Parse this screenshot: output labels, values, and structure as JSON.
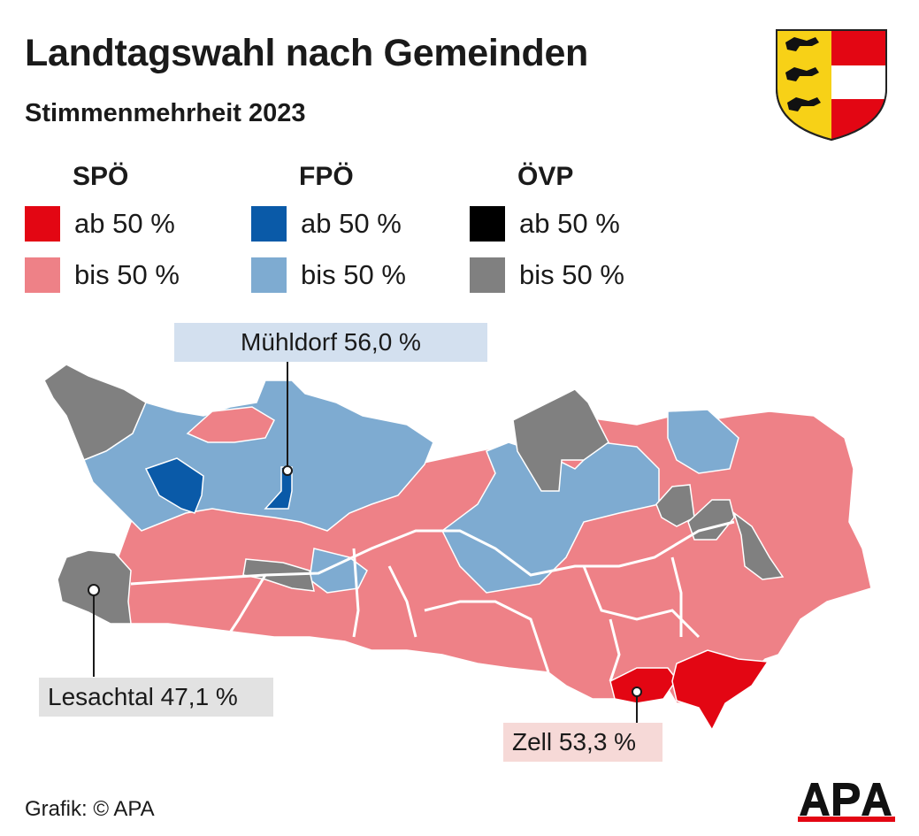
{
  "header": {
    "title": "Landtagswahl nach Gemeinden",
    "subtitle": "Stimmenmehrheit 2023"
  },
  "legend": [
    {
      "party": "SPÖ",
      "items": [
        {
          "label": "ab 50 %",
          "color": "#e30613"
        },
        {
          "label": "bis 50 %",
          "color": "#ee8187"
        }
      ]
    },
    {
      "party": "FPÖ",
      "items": [
        {
          "label": "ab 50 %",
          "color": "#0a5aa8"
        },
        {
          "label": "bis 50 %",
          "color": "#7eabd1"
        }
      ]
    },
    {
      "party": "ÖVP",
      "items": [
        {
          "label": "ab 50 %",
          "color": "#000000"
        },
        {
          "label": "bis 50 %",
          "color": "#808080"
        }
      ]
    }
  ],
  "callouts": {
    "muehldorf": "Mühldorf 56,0 %",
    "lesachtal": "Lesachtal 47,1 %",
    "zell": "Zell 53,3 %"
  },
  "footer": {
    "credit": "Grafik: © APA"
  }
}
